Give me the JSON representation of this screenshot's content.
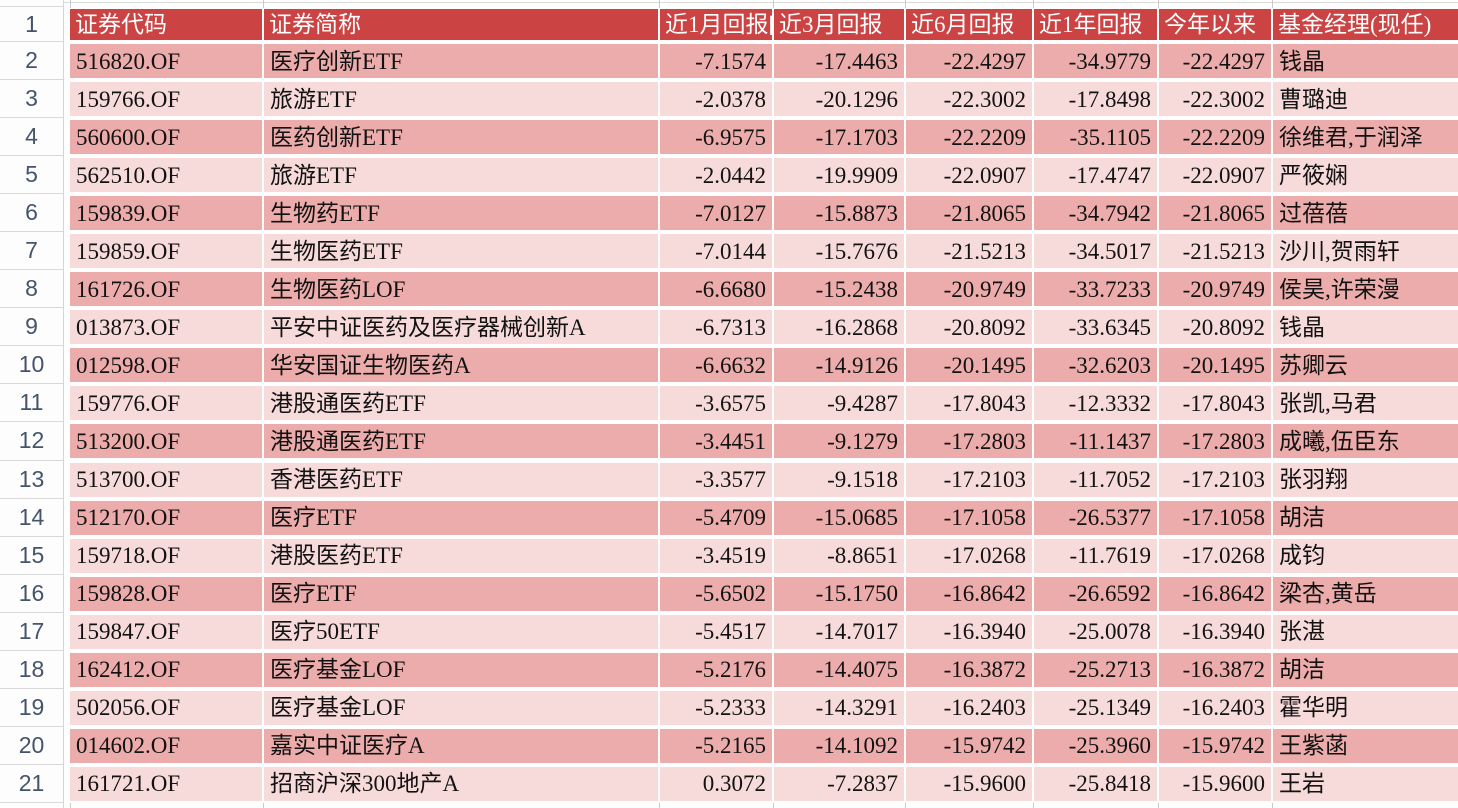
{
  "spreadsheet": {
    "description": "fund-returns-table",
    "header_row_number": "1",
    "columns": [
      {
        "id": "code",
        "label": "证券代码"
      },
      {
        "id": "name",
        "label": "证券简称"
      },
      {
        "id": "r1m",
        "label": "近1月回报[",
        "numeric": true
      },
      {
        "id": "r3m",
        "label": "近3月回报",
        "numeric": true
      },
      {
        "id": "r6m",
        "label": "近6月回报",
        "numeric": true
      },
      {
        "id": "r1y",
        "label": "近1年回报",
        "numeric": true
      },
      {
        "id": "ytd",
        "label": "今年以来",
        "numeric": true
      },
      {
        "id": "manager",
        "label": "基金经理(现任)"
      }
    ],
    "rows": [
      {
        "row_num": "2",
        "code": "516820.OF",
        "name": "医疗创新ETF",
        "r1m": "-7.1574",
        "r3m": "-17.4463",
        "r6m": "-22.4297",
        "r1y": "-34.9779",
        "ytd": "-22.4297",
        "manager": "钱晶"
      },
      {
        "row_num": "3",
        "code": "159766.OF",
        "name": "旅游ETF",
        "r1m": "-2.0378",
        "r3m": "-20.1296",
        "r6m": "-22.3002",
        "r1y": "-17.8498",
        "ytd": "-22.3002",
        "manager": "曹璐迪"
      },
      {
        "row_num": "4",
        "code": "560600.OF",
        "name": "医药创新ETF",
        "r1m": "-6.9575",
        "r3m": "-17.1703",
        "r6m": "-22.2209",
        "r1y": "-35.1105",
        "ytd": "-22.2209",
        "manager": "徐维君,于润泽"
      },
      {
        "row_num": "5",
        "code": "562510.OF",
        "name": "旅游ETF",
        "r1m": "-2.0442",
        "r3m": "-19.9909",
        "r6m": "-22.0907",
        "r1y": "-17.4747",
        "ytd": "-22.0907",
        "manager": "严筱娴"
      },
      {
        "row_num": "6",
        "code": "159839.OF",
        "name": "生物药ETF",
        "r1m": "-7.0127",
        "r3m": "-15.8873",
        "r6m": "-21.8065",
        "r1y": "-34.7942",
        "ytd": "-21.8065",
        "manager": "过蓓蓓"
      },
      {
        "row_num": "7",
        "code": "159859.OF",
        "name": "生物医药ETF",
        "r1m": "-7.0144",
        "r3m": "-15.7676",
        "r6m": "-21.5213",
        "r1y": "-34.5017",
        "ytd": "-21.5213",
        "manager": "沙川,贺雨轩"
      },
      {
        "row_num": "8",
        "code": "161726.OF",
        "name": "生物医药LOF",
        "r1m": "-6.6680",
        "r3m": "-15.2438",
        "r6m": "-20.9749",
        "r1y": "-33.7233",
        "ytd": "-20.9749",
        "manager": "侯昊,许荣漫"
      },
      {
        "row_num": "9",
        "code": "013873.OF",
        "name": "平安中证医药及医疗器械创新A",
        "r1m": "-6.7313",
        "r3m": "-16.2868",
        "r6m": "-20.8092",
        "r1y": "-33.6345",
        "ytd": "-20.8092",
        "manager": "钱晶"
      },
      {
        "row_num": "10",
        "code": "012598.OF",
        "name": "华安国证生物医药A",
        "r1m": "-6.6632",
        "r3m": "-14.9126",
        "r6m": "-20.1495",
        "r1y": "-32.6203",
        "ytd": "-20.1495",
        "manager": "苏卿云"
      },
      {
        "row_num": "11",
        "code": "159776.OF",
        "name": "港股通医药ETF",
        "r1m": "-3.6575",
        "r3m": "-9.4287",
        "r6m": "-17.8043",
        "r1y": "-12.3332",
        "ytd": "-17.8043",
        "manager": "张凯,马君"
      },
      {
        "row_num": "12",
        "code": "513200.OF",
        "name": "港股通医药ETF",
        "r1m": "-3.4451",
        "r3m": "-9.1279",
        "r6m": "-17.2803",
        "r1y": "-11.1437",
        "ytd": "-17.2803",
        "manager": "成曦,伍臣东"
      },
      {
        "row_num": "13",
        "code": "513700.OF",
        "name": "香港医药ETF",
        "r1m": "-3.3577",
        "r3m": "-9.1518",
        "r6m": "-17.2103",
        "r1y": "-11.7052",
        "ytd": "-17.2103",
        "manager": "张羽翔"
      },
      {
        "row_num": "14",
        "code": "512170.OF",
        "name": "医疗ETF",
        "r1m": "-5.4709",
        "r3m": "-15.0685",
        "r6m": "-17.1058",
        "r1y": "-26.5377",
        "ytd": "-17.1058",
        "manager": "胡洁"
      },
      {
        "row_num": "15",
        "code": "159718.OF",
        "name": "港股医药ETF",
        "r1m": "-3.4519",
        "r3m": "-8.8651",
        "r6m": "-17.0268",
        "r1y": "-11.7619",
        "ytd": "-17.0268",
        "manager": "成钧"
      },
      {
        "row_num": "16",
        "code": "159828.OF",
        "name": "医疗ETF",
        "r1m": "-5.6502",
        "r3m": "-15.1750",
        "r6m": "-16.8642",
        "r1y": "-26.6592",
        "ytd": "-16.8642",
        "manager": "梁杏,黄岳"
      },
      {
        "row_num": "17",
        "code": "159847.OF",
        "name": "医疗50ETF",
        "r1m": "-5.4517",
        "r3m": "-14.7017",
        "r6m": "-16.3940",
        "r1y": "-25.0078",
        "ytd": "-16.3940",
        "manager": "张湛"
      },
      {
        "row_num": "18",
        "code": "162412.OF",
        "name": "医疗基金LOF",
        "r1m": "-5.2176",
        "r3m": "-14.4075",
        "r6m": "-16.3872",
        "r1y": "-25.2713",
        "ytd": "-16.3872",
        "manager": "胡洁"
      },
      {
        "row_num": "19",
        "code": "502056.OF",
        "name": "医疗基金LOF",
        "r1m": "-5.2333",
        "r3m": "-14.3291",
        "r6m": "-16.2403",
        "r1y": "-25.1349",
        "ytd": "-16.2403",
        "manager": "霍华明"
      },
      {
        "row_num": "20",
        "code": "014602.OF",
        "name": "嘉实中证医疗A",
        "r1m": "-5.2165",
        "r3m": "-14.1092",
        "r6m": "-15.9742",
        "r1y": "-25.3960",
        "ytd": "-15.9742",
        "manager": "王紫菡"
      },
      {
        "row_num": "21",
        "code": "161721.OF",
        "name": "招商沪深300地产A",
        "r1m": "0.3072",
        "r3m": "-7.2837",
        "r6m": "-15.9600",
        "r1y": "-25.8418",
        "ytd": "-15.9600",
        "manager": "王岩"
      }
    ],
    "colors": {
      "header_bg": "#cb4343",
      "band_dark": "#ecacab",
      "band_light": "#f7dbda",
      "row_number_color": "#44546a"
    }
  }
}
